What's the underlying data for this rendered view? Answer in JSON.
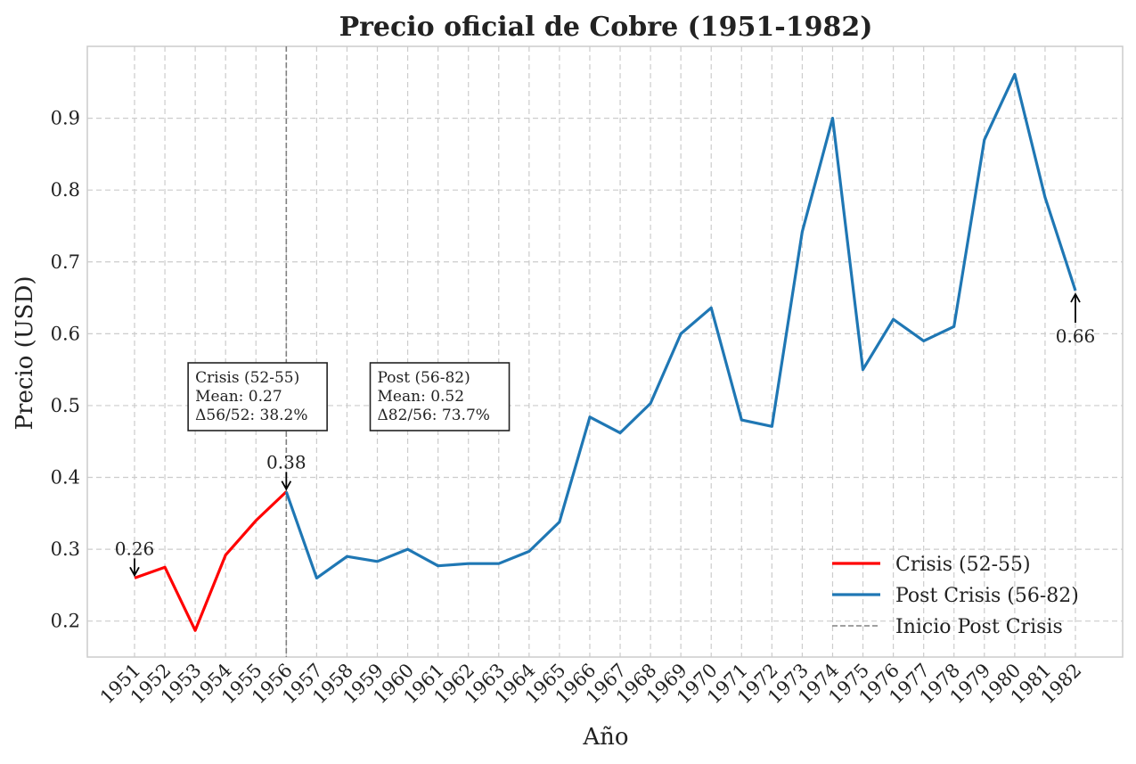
{
  "chart_data": {
    "type": "line",
    "title": "Precio oficial de Cobre (1951-1982)",
    "xlabel": "Año",
    "ylabel": "Precio (USD)",
    "ylim": [
      0.15,
      1.0
    ],
    "yticks": [
      "0.2",
      "0.3",
      "0.4",
      "0.5",
      "0.6",
      "0.7",
      "0.8",
      "0.9"
    ],
    "x": [
      1951,
      1952,
      1953,
      1954,
      1955,
      1956,
      1957,
      1958,
      1959,
      1960,
      1961,
      1962,
      1963,
      1964,
      1965,
      1966,
      1967,
      1968,
      1969,
      1970,
      1971,
      1972,
      1973,
      1974,
      1975,
      1976,
      1977,
      1978,
      1979,
      1980,
      1981,
      1982
    ],
    "grid": true,
    "legend_position": "lower-right",
    "series": [
      {
        "name": "Crisis (52-55)",
        "color": "#ff0000",
        "x": [
          1951,
          1952,
          1953,
          1954,
          1955,
          1956
        ],
        "values": [
          0.26,
          0.275,
          0.187,
          0.292,
          0.34,
          0.38
        ]
      },
      {
        "name": "Post Crisis (56-82)",
        "color": "#1f77b4",
        "x": [
          1956,
          1957,
          1958,
          1959,
          1960,
          1961,
          1962,
          1963,
          1964,
          1965,
          1966,
          1967,
          1968,
          1969,
          1970,
          1971,
          1972,
          1973,
          1974,
          1975,
          1976,
          1977,
          1978,
          1979,
          1980,
          1981,
          1982
        ],
        "values": [
          0.38,
          0.26,
          0.29,
          0.283,
          0.3,
          0.277,
          0.28,
          0.28,
          0.297,
          0.338,
          0.484,
          0.462,
          0.503,
          0.6,
          0.636,
          0.48,
          0.471,
          0.742,
          0.9,
          0.55,
          0.62,
          0.59,
          0.61,
          0.87,
          0.961,
          0.79,
          0.66
        ]
      }
    ],
    "reference_line": {
      "name": "Inicio Post Crisis",
      "x": 1956,
      "color": "#808080"
    },
    "annotations": [
      {
        "text": "0.26",
        "x": 1951,
        "y": 0.26,
        "placement": "above"
      },
      {
        "text": "0.38",
        "x": 1956,
        "y": 0.38,
        "placement": "above"
      },
      {
        "text": "0.66",
        "x": 1982,
        "y": 0.66,
        "placement": "below"
      }
    ],
    "stat_boxes": [
      {
        "lines": [
          "Crisis (52-55)",
          "Mean: 0.27",
          "Δ56/52: 38.2%"
        ]
      },
      {
        "lines": [
          "Post (56-82)",
          "Mean: 0.52",
          "Δ82/56: 73.7%"
        ]
      }
    ]
  }
}
